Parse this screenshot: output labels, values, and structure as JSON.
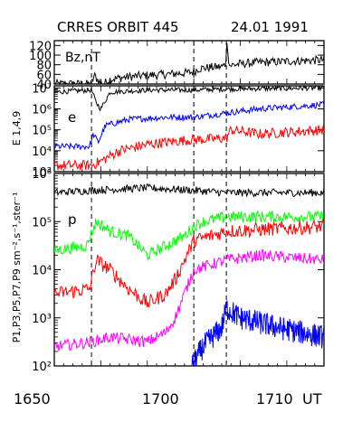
{
  "header": {
    "title": "CRRES ORBIT 445",
    "date": "24.01 1991"
  },
  "colors": {
    "black": "#000000",
    "blue": "#0000ff",
    "red": "#ff0000",
    "green": "#00ff00",
    "magenta": "#ff00ff"
  },
  "chart_data": {
    "type": "line",
    "x_unit": "UT",
    "x_ticks": [
      "1650",
      "1700",
      "1710"
    ],
    "x_tick_values": [
      1650,
      1700,
      1710
    ],
    "x_range_minutes": [
      0,
      29
    ],
    "markers_minutes": [
      4.0,
      15.0,
      18.5
    ],
    "panels": [
      {
        "id": "bz",
        "label": "Bz,nT",
        "scale": "linear",
        "ylim": [
          40,
          130
        ],
        "y_ticks": [
          "40",
          "60",
          "80",
          "100",
          "120"
        ],
        "y_tick_values": [
          40,
          60,
          80,
          100,
          120
        ],
        "series": [
          {
            "color": "black",
            "noise": 3,
            "points": [
              [
                0,
                40
              ],
              [
                4,
                40
              ],
              [
                4.3,
                58
              ],
              [
                4.8,
                45
              ],
              [
                5.3,
                40
              ],
              [
                6,
                50
              ],
              [
                8,
                55
              ],
              [
                10,
                58
              ],
              [
                12,
                60
              ],
              [
                14,
                63
              ],
              [
                15,
                65
              ],
              [
                15.5,
                72
              ],
              [
                16.5,
                74
              ],
              [
                18,
                76
              ],
              [
                18.4,
                80
              ],
              [
                18.6,
                130
              ],
              [
                18.8,
                78
              ],
              [
                20,
                82
              ],
              [
                22,
                85
              ],
              [
                24,
                86
              ],
              [
                26,
                88
              ],
              [
                29,
                90
              ]
            ]
          }
        ]
      },
      {
        "id": "e",
        "label": "e",
        "ylabel": "E 1,4,9",
        "scale": "log",
        "ylim_exp": [
          3,
          7.1
        ],
        "y_ticks": [
          "10³",
          "10⁴",
          "10⁵",
          "10⁶",
          "10⁷"
        ],
        "y_tick_exp": [
          3,
          4,
          5,
          6,
          7
        ],
        "series": [
          {
            "color": "black",
            "noise": 0.12,
            "points": [
              [
                0,
                6.8
              ],
              [
                2,
                6.85
              ],
              [
                4,
                6.9
              ],
              [
                4.5,
                6.3
              ],
              [
                5,
                6.0
              ],
              [
                5.5,
                6.4
              ],
              [
                6,
                6.8
              ],
              [
                10,
                6.9
              ],
              [
                15,
                6.9
              ],
              [
                18.5,
                6.95
              ],
              [
                29,
                7.0
              ]
            ]
          },
          {
            "color": "blue",
            "noise": 0.15,
            "points": [
              [
                0,
                4.2
              ],
              [
                3.8,
                4.2
              ],
              [
                4.2,
                4.8
              ],
              [
                4.7,
                4.4
              ],
              [
                5.5,
                5.2
              ],
              [
                8,
                5.5
              ],
              [
                12,
                5.6
              ],
              [
                15,
                5.6
              ],
              [
                18.5,
                5.8
              ],
              [
                22,
                6.0
              ],
              [
                29,
                6.2
              ]
            ]
          },
          {
            "color": "red",
            "noise": 0.25,
            "points": [
              [
                0,
                3.3
              ],
              [
                4,
                3.3
              ],
              [
                5,
                3.5
              ],
              [
                7,
                4.0
              ],
              [
                10,
                4.3
              ],
              [
                14,
                4.5
              ],
              [
                18.5,
                4.6
              ],
              [
                19,
                5.0
              ],
              [
                22,
                4.8
              ],
              [
                29,
                5.0
              ]
            ]
          }
        ]
      },
      {
        "id": "p",
        "label": "p",
        "ylabel": "P1,P3,P5,P7,P9 sm⁻²,s⁻¹,ster⁻¹",
        "scale": "log",
        "ylim_exp": [
          2,
          6
        ],
        "y_ticks": [
          "10²",
          "10³",
          "10⁴",
          "10⁵",
          "10⁶"
        ],
        "y_tick_exp": [
          2,
          3,
          4,
          5,
          6
        ],
        "series": [
          {
            "color": "black",
            "noise": 0.08,
            "points": [
              [
                0,
                5.6
              ],
              [
                4,
                5.65
              ],
              [
                10,
                5.7
              ],
              [
                15,
                5.65
              ],
              [
                18.5,
                5.6
              ],
              [
                29,
                5.6
              ]
            ]
          },
          {
            "color": "green",
            "noise": 0.12,
            "points": [
              [
                0,
                4.4
              ],
              [
                3.5,
                4.5
              ],
              [
                4.5,
                5.0
              ],
              [
                6,
                4.8
              ],
              [
                8,
                4.7
              ],
              [
                10,
                4.3
              ],
              [
                12,
                4.5
              ],
              [
                14,
                4.7
              ],
              [
                15,
                4.9
              ],
              [
                16,
                5.0
              ],
              [
                18.5,
                5.1
              ],
              [
                29,
                5.1
              ]
            ]
          },
          {
            "color": "red",
            "noise": 0.15,
            "points": [
              [
                0,
                3.5
              ],
              [
                3.8,
                3.6
              ],
              [
                4.5,
                4.2
              ],
              [
                6,
                4.0
              ],
              [
                8,
                3.6
              ],
              [
                10,
                3.3
              ],
              [
                12,
                3.5
              ],
              [
                13,
                3.8
              ],
              [
                14,
                4.2
              ],
              [
                15,
                4.6
              ],
              [
                18.5,
                4.8
              ],
              [
                29,
                4.9
              ]
            ]
          },
          {
            "color": "magenta",
            "noise": 0.12,
            "points": [
              [
                0,
                2.4
              ],
              [
                4,
                2.5
              ],
              [
                6,
                2.6
              ],
              [
                10,
                2.5
              ],
              [
                12,
                2.7
              ],
              [
                13,
                3.0
              ],
              [
                14,
                3.5
              ],
              [
                15,
                4.0
              ],
              [
                18.5,
                4.2
              ],
              [
                22,
                4.3
              ],
              [
                29,
                4.2
              ]
            ]
          },
          {
            "color": "blue",
            "start": 14.8,
            "noise": 0.25,
            "points": [
              [
                14.8,
                2.0
              ],
              [
                16,
                2.4
              ],
              [
                18,
                2.8
              ],
              [
                18.5,
                3.2
              ],
              [
                20,
                3.0
              ],
              [
                24,
                2.8
              ],
              [
                29,
                2.6
              ]
            ]
          }
        ]
      }
    ]
  }
}
